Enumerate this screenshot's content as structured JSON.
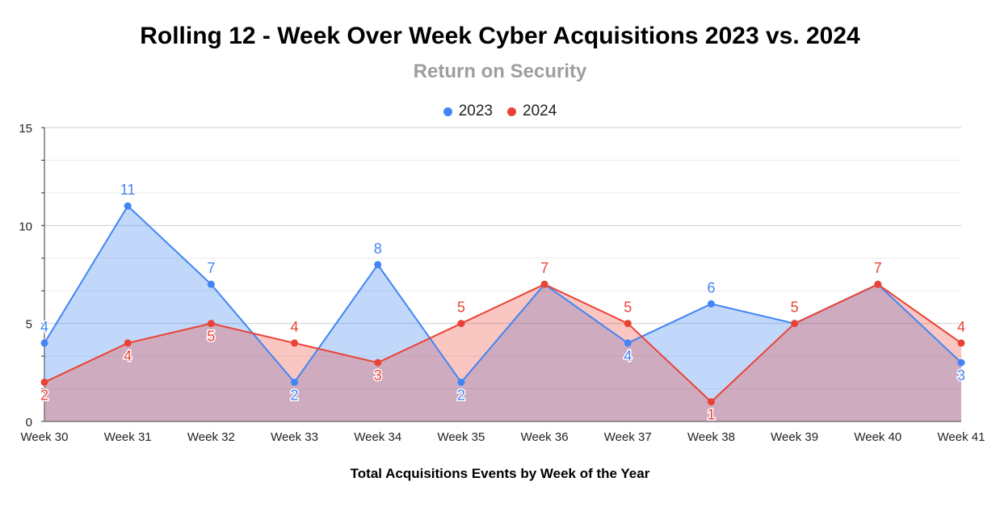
{
  "chart_data": {
    "type": "area",
    "title": "Rolling 12 - Week Over Week Cyber Acquisitions 2023 vs. 2024",
    "subtitle": "Return on Security",
    "xlabel": "Total Acquisitions Events by Week of the Year",
    "ylabel": "",
    "categories": [
      "Week 30",
      "Week 31",
      "Week 32",
      "Week 33",
      "Week 34",
      "Week 35",
      "Week 36",
      "Week 37",
      "Week 38",
      "Week 39",
      "Week 40",
      "Week 41"
    ],
    "series": [
      {
        "name": "2023",
        "color": "#4285f4",
        "values": [
          4,
          11,
          7,
          2,
          8,
          2,
          7,
          4,
          6,
          5,
          7,
          3
        ]
      },
      {
        "name": "2024",
        "color": "#ea4335",
        "values": [
          2,
          4,
          5,
          4,
          3,
          5,
          7,
          5,
          1,
          5,
          7,
          4
        ]
      }
    ],
    "ylim": [
      0,
      15
    ],
    "yticks": [
      0,
      5,
      10,
      15
    ],
    "grid": true,
    "legend": "top"
  }
}
